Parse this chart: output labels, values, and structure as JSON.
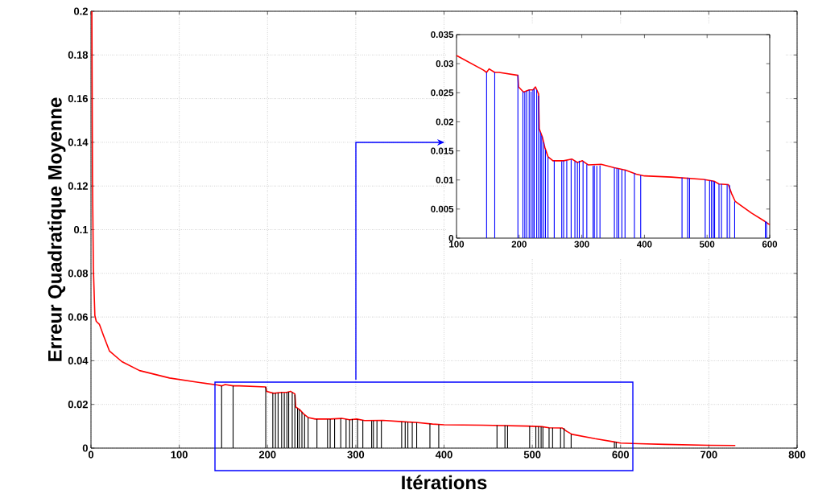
{
  "chart_data": [
    {
      "type": "line",
      "xlabel": "Itérations",
      "ylabel": "Erreur Quadratique Moyenne",
      "xlim": [
        0,
        800
      ],
      "ylim": [
        0,
        0.2
      ],
      "xticks": [
        0,
        100,
        200,
        300,
        400,
        500,
        600,
        700,
        800
      ],
      "yticks": [
        0,
        0.02,
        0.04,
        0.06,
        0.08,
        0.1,
        0.12,
        0.14,
        0.16,
        0.18,
        0.2
      ],
      "grid": true,
      "series": [
        {
          "type": "line",
          "color": "#ff0000",
          "x": [
            1,
            1.7,
            2.7,
            4.4,
            6,
            9.5,
            14.5,
            21,
            35,
            55,
            89,
            123,
            143,
            148,
            152,
            161,
            168,
            198,
            199,
            207,
            216,
            222,
            226,
            231,
            232,
            237,
            241,
            246,
            254,
            271,
            284,
            293,
            301,
            310,
            331,
            352,
            370,
            387,
            400,
            443,
            494,
            511,
            519,
            534,
            539,
            545,
            571,
            592,
            600,
            620,
            650,
            700,
            730
          ],
          "values": [
            0.2,
            0.1236,
            0.0826,
            0.0607,
            0.058,
            0.0567,
            0.0512,
            0.0444,
            0.0396,
            0.0355,
            0.0321,
            0.03,
            0.0289,
            0.0285,
            0.0291,
            0.0285,
            0.0285,
            0.028,
            0.026,
            0.0251,
            0.0255,
            0.0255,
            0.026,
            0.0248,
            0.0188,
            0.0174,
            0.0156,
            0.014,
            0.0133,
            0.0133,
            0.0136,
            0.013,
            0.0133,
            0.0126,
            0.0127,
            0.0121,
            0.0117,
            0.011,
            0.0107,
            0.0105,
            0.0101,
            0.0098,
            0.0093,
            0.0092,
            0.0077,
            0.0063,
            0.0043,
            0.0029,
            0.0023,
            0.002,
            0.0017,
            0.0013,
            0.0012
          ]
        },
        {
          "type": "bar",
          "color": "#000000",
          "x": [
            148,
            161,
            198,
            206,
            209,
            212,
            216,
            219,
            222,
            224,
            228,
            231,
            234,
            236,
            239,
            242,
            246,
            256,
            268,
            271,
            276,
            283,
            289,
            293,
            296,
            302,
            308,
            318,
            320,
            324,
            329,
            352,
            356,
            359,
            364,
            369,
            384,
            394,
            460,
            469,
            472,
            497,
            504,
            507,
            510,
            512,
            519,
            523,
            532,
            536,
            544,
            593,
            595
          ],
          "values": [
            0.0285,
            0.0285,
            0.028,
            0.0252,
            0.0251,
            0.0253,
            0.0255,
            0.0252,
            0.0255,
            0.0257,
            0.0255,
            0.0245,
            0.0182,
            0.0176,
            0.0165,
            0.0152,
            0.014,
            0.0133,
            0.0132,
            0.0133,
            0.0133,
            0.0135,
            0.0132,
            0.013,
            0.0133,
            0.0132,
            0.0127,
            0.0124,
            0.0125,
            0.0124,
            0.0125,
            0.0121,
            0.012,
            0.0119,
            0.0118,
            0.0117,
            0.0112,
            0.0108,
            0.0104,
            0.0104,
            0.0103,
            0.0101,
            0.0099,
            0.0099,
            0.0098,
            0.0097,
            0.0093,
            0.0093,
            0.0092,
            0.0091,
            0.0063,
            0.0029,
            0.0028
          ]
        }
      ]
    },
    {
      "type": "line",
      "xlim": [
        100,
        600
      ],
      "ylim": [
        0,
        0.035
      ],
      "xticks": [
        100,
        200,
        300,
        400,
        500,
        600
      ],
      "yticks": [
        0,
        0.005,
        0.01,
        0.015,
        0.02,
        0.025,
        0.03,
        0.035
      ],
      "grid": false,
      "series": [
        {
          "type": "line",
          "color": "#ff0000",
          "x": [
            100,
            143,
            148,
            152,
            161,
            168,
            198,
            199,
            207,
            216,
            222,
            226,
            231,
            232,
            237,
            241,
            246,
            254,
            271,
            284,
            293,
            301,
            310,
            331,
            352,
            370,
            387,
            400,
            443,
            494,
            511,
            519,
            534,
            539,
            545,
            571,
            592,
            600
          ],
          "values": [
            0.0314,
            0.0289,
            0.0285,
            0.0291,
            0.0285,
            0.0285,
            0.028,
            0.026,
            0.0251,
            0.0255,
            0.0255,
            0.026,
            0.0248,
            0.0188,
            0.0174,
            0.0156,
            0.014,
            0.0133,
            0.0133,
            0.0136,
            0.013,
            0.0133,
            0.0126,
            0.0127,
            0.0121,
            0.0117,
            0.011,
            0.0107,
            0.0105,
            0.0101,
            0.0098,
            0.0093,
            0.0092,
            0.0077,
            0.0063,
            0.0043,
            0.0029,
            0.0023
          ]
        },
        {
          "type": "bar",
          "color": "#0000ff",
          "x": [
            148,
            161,
            198,
            206,
            209,
            212,
            216,
            219,
            222,
            224,
            228,
            231,
            234,
            236,
            239,
            242,
            246,
            256,
            268,
            271,
            276,
            283,
            289,
            293,
            296,
            302,
            308,
            318,
            320,
            324,
            329,
            352,
            356,
            359,
            364,
            369,
            384,
            394,
            460,
            469,
            472,
            497,
            504,
            507,
            510,
            512,
            519,
            523,
            532,
            536,
            544,
            593,
            595
          ],
          "values": [
            0.0285,
            0.0285,
            0.028,
            0.0252,
            0.0251,
            0.0253,
            0.0255,
            0.0252,
            0.0255,
            0.0257,
            0.0255,
            0.0245,
            0.0182,
            0.0176,
            0.0165,
            0.0152,
            0.014,
            0.0133,
            0.0132,
            0.0133,
            0.0133,
            0.0135,
            0.0132,
            0.013,
            0.0133,
            0.0132,
            0.0127,
            0.0124,
            0.0125,
            0.0124,
            0.0125,
            0.0121,
            0.012,
            0.0119,
            0.0118,
            0.0117,
            0.0112,
            0.0108,
            0.0104,
            0.0104,
            0.0103,
            0.0101,
            0.0099,
            0.0099,
            0.0098,
            0.0097,
            0.0093,
            0.0093,
            0.0092,
            0.0091,
            0.0063,
            0.0029,
            0.0028
          ]
        }
      ]
    }
  ]
}
